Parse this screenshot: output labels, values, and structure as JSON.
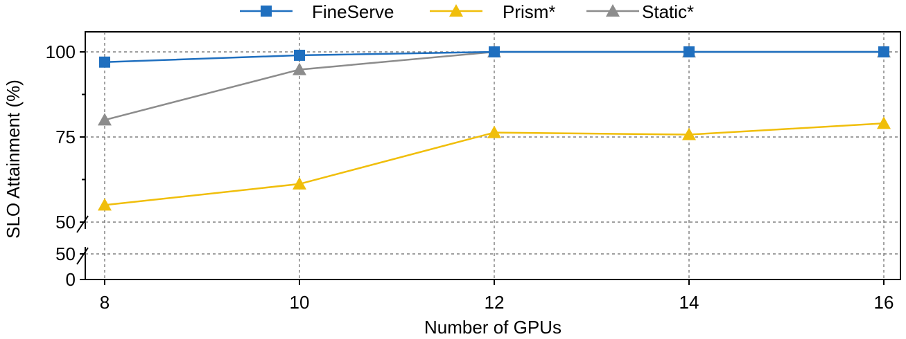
{
  "chart_data": {
    "type": "line",
    "xlabel": "Number of GPUs",
    "ylabel": "SLO Attainment  (%)",
    "x": [
      8,
      10,
      12,
      14,
      16
    ],
    "x_tick_labels": [
      "8",
      "10",
      "12",
      "14",
      "16"
    ],
    "y_axis_segments": [
      {
        "name": "upper",
        "ylim": [
          50,
          105
        ],
        "ticks": [
          50,
          75,
          100
        ],
        "tick_labels": [
          "50",
          "75",
          "100"
        ]
      },
      {
        "name": "lower",
        "ylim": [
          0,
          50
        ],
        "ticks": [
          0,
          50
        ],
        "tick_labels": [
          "0",
          "50"
        ]
      }
    ],
    "grid": true,
    "axis_break": true,
    "legend_position": "top-center",
    "series": [
      {
        "name": "FineServe",
        "color": "#1f6fbf",
        "marker": "square",
        "values": [
          97,
          99,
          100,
          100,
          100
        ]
      },
      {
        "name": "Prism*",
        "color": "#f0be0a",
        "marker": "triangle",
        "values": [
          55,
          61.2,
          76.3,
          75.7,
          79
        ]
      },
      {
        "name": "Static*",
        "color": "#8c8c8c",
        "marker": "triangle",
        "values": [
          80,
          94.8,
          100,
          100,
          100
        ]
      }
    ]
  }
}
